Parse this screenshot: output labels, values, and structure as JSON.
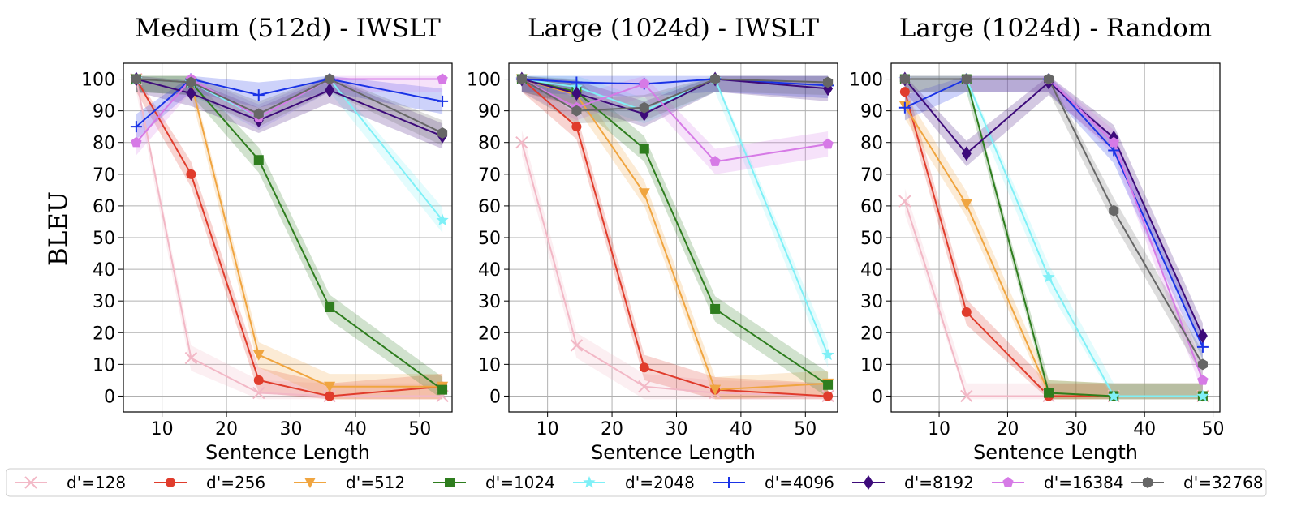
{
  "ylabel": "BLEU",
  "legend": {
    "placement": "bottom",
    "entries": [
      {
        "label": "d'=128",
        "color": "#f2b8c6",
        "marker": "x"
      },
      {
        "label": "d'=256",
        "color": "#e03c2c",
        "marker": "o"
      },
      {
        "label": "d'=512",
        "color": "#f0a540",
        "marker": "v"
      },
      {
        "label": "d'=1024",
        "color": "#2e7d1e",
        "marker": "s"
      },
      {
        "label": "d'=2048",
        "color": "#7ff0f7",
        "marker": "*"
      },
      {
        "label": "d'=4096",
        "color": "#1a33e6",
        "marker": "+"
      },
      {
        "label": "d'=8192",
        "color": "#3d0b7a",
        "marker": "d"
      },
      {
        "label": "d'=16384",
        "color": "#d67ae6",
        "marker": "p"
      },
      {
        "label": "d'=32768",
        "color": "#666666",
        "marker": "h"
      }
    ]
  },
  "chart_data": [
    {
      "type": "line",
      "title": "Medium (512d) - IWSLT",
      "xlabel": "Sentence Length",
      "ylabel": "BLEU",
      "xlim": [
        4,
        55
      ],
      "ylim": [
        -5,
        105
      ],
      "xticks": [
        10,
        20,
        30,
        40,
        50
      ],
      "yticks": [
        0,
        10,
        20,
        30,
        40,
        50,
        60,
        70,
        80,
        90,
        100
      ],
      "grid": true,
      "x": [
        6,
        14.5,
        25,
        36,
        53.5
      ],
      "series": [
        {
          "name": "d'=128",
          "values": [
            100,
            12,
            1,
            0,
            0
          ]
        },
        {
          "name": "d'=256",
          "values": [
            100,
            70,
            5,
            0,
            3
          ]
        },
        {
          "name": "d'=512",
          "values": [
            100,
            99,
            13,
            3,
            3
          ]
        },
        {
          "name": "d'=1024",
          "values": [
            100,
            99,
            74.5,
            28,
            2
          ]
        },
        {
          "name": "d'=2048",
          "values": [
            100,
            99,
            88,
            100,
            55.5
          ]
        },
        {
          "name": "d'=4096",
          "values": [
            85,
            100,
            95,
            100,
            93
          ]
        },
        {
          "name": "d'=8192",
          "values": [
            100,
            95.5,
            87,
            96.5,
            82
          ]
        },
        {
          "name": "d'=16384",
          "values": [
            80,
            100,
            88,
            100,
            100
          ]
        },
        {
          "name": "d'=32768",
          "values": [
            100,
            99,
            89,
            100,
            83
          ]
        }
      ]
    },
    {
      "type": "line",
      "title": "Large (1024d) - IWSLT",
      "xlabel": "Sentence Length",
      "ylabel": "",
      "xlim": [
        4,
        55
      ],
      "ylim": [
        -5,
        105
      ],
      "xticks": [
        10,
        20,
        30,
        40,
        50
      ],
      "yticks": [
        0,
        10,
        20,
        30,
        40,
        50,
        60,
        70,
        80,
        90,
        100
      ],
      "grid": true,
      "x": [
        6,
        14.5,
        25,
        36,
        53.5
      ],
      "series": [
        {
          "name": "d'=128",
          "values": [
            80,
            16,
            3,
            1,
            0
          ]
        },
        {
          "name": "d'=256",
          "values": [
            100,
            85,
            9,
            2,
            0
          ]
        },
        {
          "name": "d'=512",
          "values": [
            100,
            95,
            64,
            2,
            4
          ]
        },
        {
          "name": "d'=1024",
          "values": [
            100,
            96,
            78,
            27.5,
            3.5
          ]
        },
        {
          "name": "d'=2048",
          "values": [
            100,
            97.5,
            90,
            100,
            13
          ]
        },
        {
          "name": "d'=4096",
          "values": [
            100,
            99,
            98.5,
            100,
            98
          ]
        },
        {
          "name": "d'=8192",
          "values": [
            100,
            95.5,
            89,
            100,
            97
          ]
        },
        {
          "name": "d'=16384",
          "values": [
            100,
            91,
            98.5,
            74,
            79.5
          ]
        },
        {
          "name": "d'=32768",
          "values": [
            100,
            90,
            91,
            100,
            99
          ]
        }
      ]
    },
    {
      "type": "line",
      "title": "Large (1024d) - Random",
      "xlabel": "Sentence Length",
      "ylabel": "",
      "xlim": [
        3,
        51
      ],
      "ylim": [
        -5,
        105
      ],
      "xticks": [
        10,
        20,
        30,
        40,
        50
      ],
      "yticks": [
        0,
        10,
        20,
        30,
        40,
        50,
        60,
        70,
        80,
        90,
        100
      ],
      "grid": true,
      "x": [
        5,
        14,
        26,
        35.5,
        48.5
      ],
      "series": [
        {
          "name": "d'=128",
          "values": [
            61.5,
            0,
            0,
            0,
            0
          ]
        },
        {
          "name": "d'=256",
          "values": [
            96,
            26.5,
            0,
            0,
            0
          ]
        },
        {
          "name": "d'=512",
          "values": [
            91.5,
            60.5,
            1,
            0,
            0
          ]
        },
        {
          "name": "d'=1024",
          "values": [
            100,
            100,
            1,
            0,
            0
          ]
        },
        {
          "name": "d'=2048",
          "values": [
            100,
            100,
            37.5,
            0,
            0
          ]
        },
        {
          "name": "d'=4096",
          "values": [
            91,
            100,
            100,
            77.5,
            15.5
          ]
        },
        {
          "name": "d'=8192",
          "values": [
            100,
            76.5,
            99,
            81.5,
            19
          ]
        },
        {
          "name": "d'=16384",
          "values": [
            100,
            100,
            100,
            80,
            5
          ]
        },
        {
          "name": "d'=32768",
          "values": [
            100,
            100,
            100,
            58.5,
            10
          ]
        }
      ]
    }
  ]
}
